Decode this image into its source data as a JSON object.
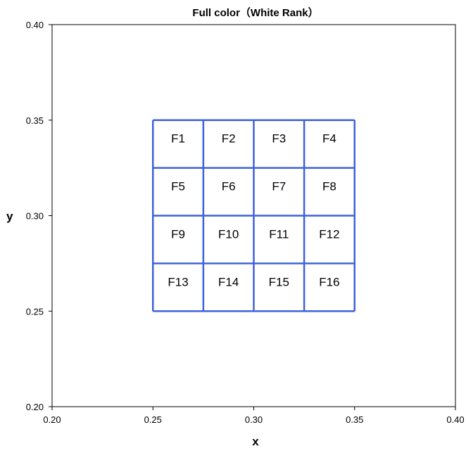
{
  "chart_data": {
    "type": "scatter",
    "title": "Full  color（White Rank）",
    "xlabel": "x",
    "ylabel": "y",
    "xlim": [
      0.2,
      0.4
    ],
    "ylim": [
      0.2,
      0.4
    ],
    "x_ticks": [
      "0.20",
      "0.25",
      "0.30",
      "0.35",
      "0.40"
    ],
    "y_ticks": [
      "0.20",
      "0.25",
      "0.30",
      "0.35",
      "0.40"
    ],
    "grid": false,
    "grid_color": "#3f62d9",
    "cell_x_bounds": [
      0.25,
      0.275,
      0.3,
      0.325,
      0.35
    ],
    "cell_y_bounds": [
      0.25,
      0.275,
      0.3,
      0.325,
      0.35
    ],
    "cells": [
      {
        "name": "F1",
        "x": [
          0.25,
          0.275
        ],
        "y": [
          0.325,
          0.35
        ]
      },
      {
        "name": "F2",
        "x": [
          0.275,
          0.3
        ],
        "y": [
          0.325,
          0.35
        ]
      },
      {
        "name": "F3",
        "x": [
          0.3,
          0.325
        ],
        "y": [
          0.325,
          0.35
        ]
      },
      {
        "name": "F4",
        "x": [
          0.325,
          0.35
        ],
        "y": [
          0.325,
          0.35
        ]
      },
      {
        "name": "F5",
        "x": [
          0.25,
          0.275
        ],
        "y": [
          0.3,
          0.325
        ]
      },
      {
        "name": "F6",
        "x": [
          0.275,
          0.3
        ],
        "y": [
          0.3,
          0.325
        ]
      },
      {
        "name": "F7",
        "x": [
          0.3,
          0.325
        ],
        "y": [
          0.3,
          0.325
        ]
      },
      {
        "name": "F8",
        "x": [
          0.325,
          0.35
        ],
        "y": [
          0.3,
          0.325
        ]
      },
      {
        "name": "F9",
        "x": [
          0.25,
          0.275
        ],
        "y": [
          0.275,
          0.3
        ]
      },
      {
        "name": "F10",
        "x": [
          0.275,
          0.3
        ],
        "y": [
          0.275,
          0.3
        ]
      },
      {
        "name": "F11",
        "x": [
          0.3,
          0.325
        ],
        "y": [
          0.275,
          0.3
        ]
      },
      {
        "name": "F12",
        "x": [
          0.325,
          0.35
        ],
        "y": [
          0.275,
          0.3
        ]
      },
      {
        "name": "F13",
        "x": [
          0.25,
          0.275
        ],
        "y": [
          0.25,
          0.275
        ]
      },
      {
        "name": "F14",
        "x": [
          0.275,
          0.3
        ],
        "y": [
          0.25,
          0.275
        ]
      },
      {
        "name": "F15",
        "x": [
          0.3,
          0.325
        ],
        "y": [
          0.25,
          0.275
        ]
      },
      {
        "name": "F16",
        "x": [
          0.325,
          0.35
        ],
        "y": [
          0.25,
          0.275
        ]
      }
    ]
  }
}
